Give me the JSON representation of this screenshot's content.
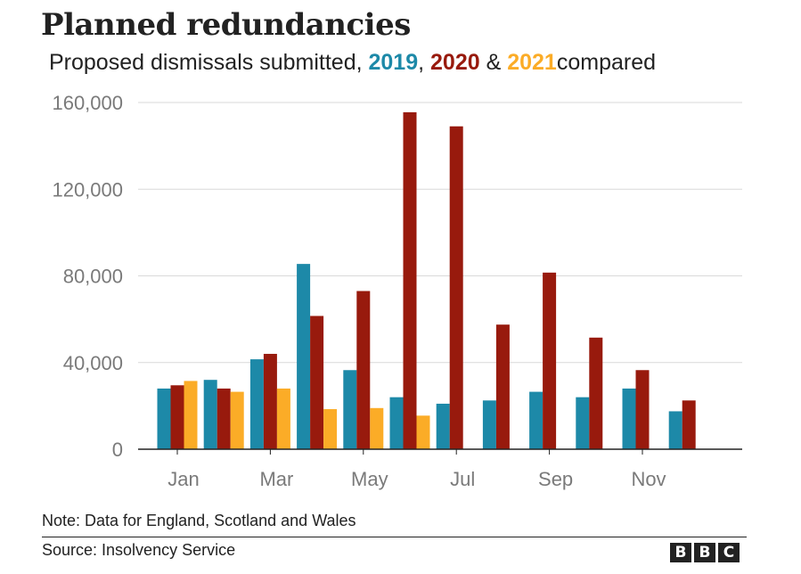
{
  "header": {
    "title": "Planned redundancies",
    "subtitle_prefix": "Proposed dismissals submitted, ",
    "subtitle_y2019": "2019",
    "subtitle_sep1": ", ",
    "subtitle_y2020": "2020",
    "subtitle_sep2": " & ",
    "subtitle_y2021": "2021",
    "subtitle_suffix": "compared"
  },
  "footer": {
    "note": "Note: Data for England, Scotland and Wales",
    "source": "Source: Insolvency Service",
    "logo_letters": [
      "B",
      "B",
      "C"
    ]
  },
  "colors": {
    "2019": "#1d89a8",
    "2020": "#981a0d",
    "2021": "#fbac27",
    "grid": "#d9d9d9",
    "axis": "#222222",
    "tick_text": "#7a7a7a"
  },
  "chart_data": {
    "type": "bar",
    "categories": [
      "Jan",
      "Feb",
      "Mar",
      "Apr",
      "May",
      "Jun",
      "Jul",
      "Aug",
      "Sep",
      "Oct",
      "Nov",
      "Dec"
    ],
    "x_tick_labels": [
      "Jan",
      "",
      "Mar",
      "",
      "May",
      "",
      "Jul",
      "",
      "Sep",
      "",
      "Nov",
      ""
    ],
    "y_ticks": [
      0,
      40000,
      80000,
      120000,
      160000
    ],
    "y_tick_labels": [
      "0",
      "40,000",
      "80,000",
      "120,000",
      "160,000"
    ],
    "ylim": [
      0,
      160000
    ],
    "grid": true,
    "series": [
      {
        "name": "2019",
        "values": [
          28000,
          32000,
          41500,
          85500,
          36500,
          24000,
          21000,
          22500,
          26500,
          24000,
          28000,
          17500
        ]
      },
      {
        "name": "2020",
        "values": [
          29500,
          28000,
          44000,
          61500,
          73000,
          155500,
          149000,
          57500,
          81500,
          51500,
          36500,
          22500
        ]
      },
      {
        "name": "2021",
        "values": [
          31500,
          26500,
          28000,
          18500,
          19000,
          15500,
          null,
          null,
          null,
          null,
          null,
          null
        ]
      }
    ]
  }
}
